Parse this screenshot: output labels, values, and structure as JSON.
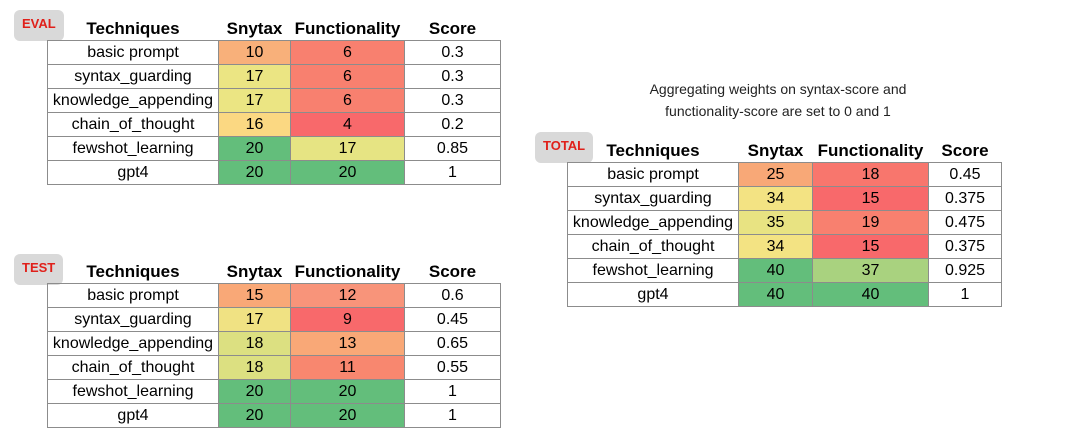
{
  "note": [
    "Aggregating weights on syntax-score and",
    "functionality-score are set to 0 and 1"
  ],
  "tables": [
    {
      "label": "EVAL",
      "header": [
        "Techniques",
        "Snytax",
        "Functionality",
        "Score"
      ],
      "rows": [
        [
          "basic prompt",
          10,
          6,
          0.3
        ],
        [
          "syntax_guarding",
          17,
          6,
          0.3
        ],
        [
          "knowledge_appending",
          17,
          6,
          0.3
        ],
        [
          "chain_of_thought",
          16,
          4,
          0.2
        ],
        [
          "fewshot_learning",
          20,
          17,
          0.85
        ],
        [
          "gpt4",
          20,
          20,
          1
        ]
      ],
      "cell_colors": [
        [
          "#f8b07a",
          "#f8806f"
        ],
        [
          "#ebe583",
          "#f8806f"
        ],
        [
          "#ebe583",
          "#f8806f"
        ],
        [
          "#fbd882",
          "#f8696b"
        ],
        [
          "#63be7b",
          "#e6e483"
        ],
        [
          "#63be7b",
          "#63be7b"
        ]
      ]
    },
    {
      "label": "TEST",
      "header": [
        "Techniques",
        "Snytax",
        "Functionality",
        "Score"
      ],
      "rows": [
        [
          "basic prompt",
          15,
          12,
          0.6
        ],
        [
          "syntax_guarding",
          17,
          9,
          0.45
        ],
        [
          "knowledge_appending",
          18,
          13,
          0.65
        ],
        [
          "chain_of_thought",
          18,
          11,
          0.55
        ],
        [
          "fewshot_learning",
          20,
          20,
          1
        ],
        [
          "gpt4",
          20,
          20,
          1
        ]
      ],
      "cell_colors": [
        [
          "#f9a877",
          "#f8947a"
        ],
        [
          "#f0e283",
          "#f8696b"
        ],
        [
          "#dce081",
          "#f9a877"
        ],
        [
          "#dce081",
          "#f8876f"
        ],
        [
          "#63be7b",
          "#63be7b"
        ],
        [
          "#63be7b",
          "#63be7b"
        ]
      ]
    },
    {
      "label": "TOTAL",
      "header": [
        "Techniques",
        "Snytax",
        "Functionality",
        "Score"
      ],
      "rows": [
        [
          "basic prompt",
          25,
          18,
          0.45
        ],
        [
          "syntax_guarding",
          34,
          15,
          0.375
        ],
        [
          "knowledge_appending",
          35,
          19,
          0.475
        ],
        [
          "chain_of_thought",
          34,
          15,
          0.375
        ],
        [
          "fewshot_learning",
          40,
          37,
          0.925
        ],
        [
          "gpt4",
          40,
          40,
          1
        ]
      ],
      "cell_colors": [
        [
          "#f8a877",
          "#f8766d"
        ],
        [
          "#f3e383",
          "#f8696b"
        ],
        [
          "#e8e382",
          "#f8806f"
        ],
        [
          "#f3e383",
          "#f8696b"
        ],
        [
          "#63be7b",
          "#a9d27f"
        ],
        [
          "#63be7b",
          "#63be7b"
        ]
      ]
    }
  ]
}
